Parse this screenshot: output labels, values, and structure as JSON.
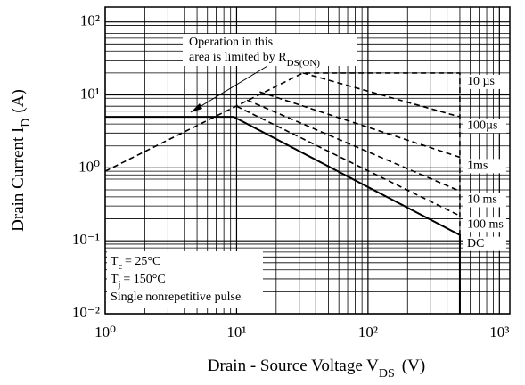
{
  "chart_data": {
    "type": "line",
    "log_x": true,
    "log_y": true,
    "grid": true,
    "minor_grid": true,
    "xlim": [
      1,
      1200
    ],
    "ylim": [
      0.01,
      160
    ],
    "xticks": [
      {
        "value": 1,
        "label": "10⁰"
      },
      {
        "value": 10,
        "label": "10¹"
      },
      {
        "value": 100,
        "label": "10²"
      },
      {
        "value": 1000,
        "label": "10³"
      }
    ],
    "yticks": [
      {
        "value": 0.01,
        "label": "10⁻²"
      },
      {
        "value": 0.1,
        "label": "10⁻¹"
      },
      {
        "value": 1,
        "label": "10⁰"
      },
      {
        "value": 10,
        "label": "10¹"
      },
      {
        "value": 100,
        "label": "10²"
      }
    ],
    "xlabel": {
      "text": "Drain - Source Voltage V",
      "sub": "DS",
      "tail": "(V)"
    },
    "ylabel": {
      "text": "Drain Current I",
      "sub": "D",
      "tail": "(A)"
    },
    "annotation": {
      "line1": "Operation in this",
      "line2": "area is limited by R",
      "sub": "DS(ON)"
    },
    "notes": [
      {
        "main": "T",
        "sub": "c",
        "rest": "= 25°C"
      },
      {
        "main": "T",
        "sub": "j",
        "rest": "= 150°C"
      },
      {
        "main": "Single nonrepetitive pulse"
      }
    ],
    "series": [
      {
        "name": "10 µs",
        "color": "#000000",
        "dash": true,
        "x": [
          1,
          32,
          500,
          500
        ],
        "values": [
          0.9,
          20,
          20,
          0.01
        ]
      },
      {
        "name": "100µs",
        "color": "#000000",
        "dash": true,
        "x": [
          32,
          500
        ],
        "values": [
          20,
          5
        ]
      },
      {
        "name": "1ms",
        "color": "#000000",
        "dash": true,
        "x": [
          15,
          500
        ],
        "values": [
          11,
          1.4
        ]
      },
      {
        "name": "10 ms",
        "color": "#000000",
        "dash": true,
        "x": [
          12,
          500
        ],
        "values": [
          8.5,
          0.48
        ]
      },
      {
        "name": "100 ms",
        "color": "#000000",
        "dash": true,
        "x": [
          10,
          500
        ],
        "values": [
          7,
          0.22
        ]
      },
      {
        "name": "DC",
        "color": "#000000",
        "dash": false,
        "x": [
          1,
          9.5,
          500,
          500
        ],
        "values": [
          5,
          5,
          0.12,
          0.01
        ]
      }
    ]
  }
}
